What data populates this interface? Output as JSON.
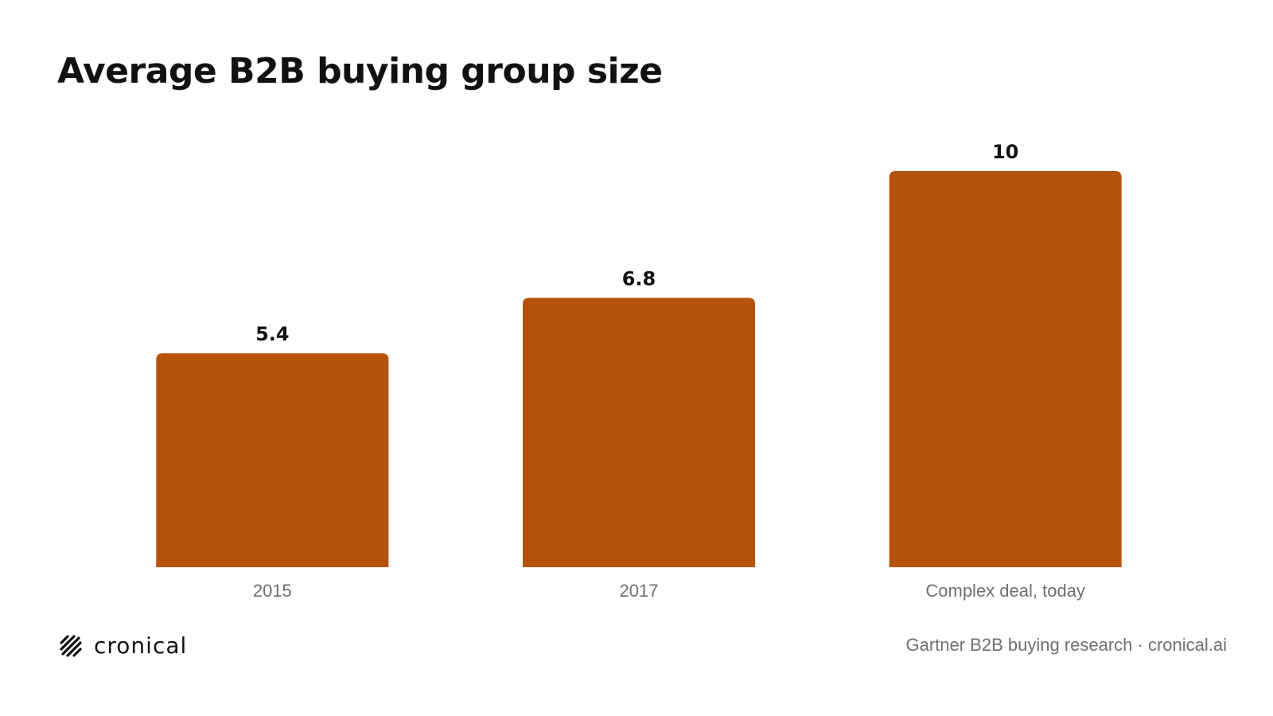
{
  "title": "Average B2B buying group size",
  "colors": {
    "bar": "#b5520b",
    "text": "#111111",
    "muted": "#6f6f6f"
  },
  "chart_data": {
    "type": "bar",
    "categories": [
      "2015",
      "2017",
      "Complex deal, today"
    ],
    "values": [
      5.4,
      6.8,
      10
    ],
    "value_labels": [
      "5.4",
      "6.8",
      "10"
    ],
    "title": "Average B2B buying group size",
    "xlabel": "",
    "ylabel": "",
    "ylim": [
      0,
      10
    ],
    "grid": false,
    "legend": "none"
  },
  "footer": {
    "logo_icon": "hatched-slash-icon",
    "logo_text": "cronical",
    "source": "Gartner B2B buying research · cronical.ai"
  }
}
